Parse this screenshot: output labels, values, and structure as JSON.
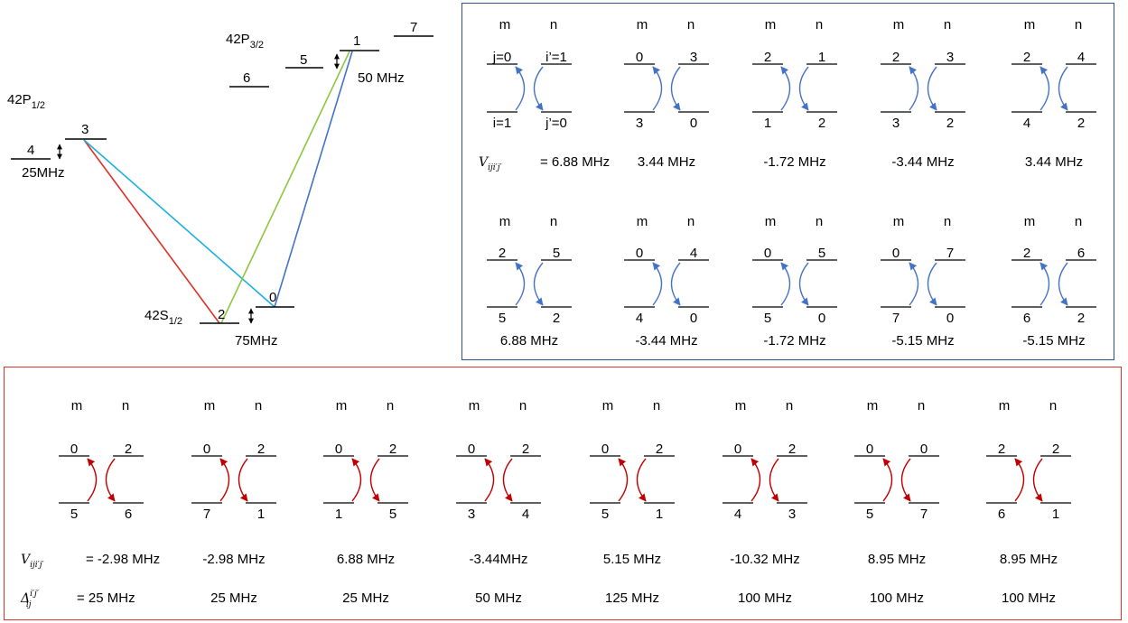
{
  "level_diagram": {
    "manifolds": [
      {
        "name": "42P",
        "sub": "3/2"
      },
      {
        "name": "42P",
        "sub": "1/2"
      },
      {
        "name": "42S",
        "sub": "1/2"
      }
    ],
    "levels": {
      "L0": "0",
      "L1": "1",
      "L2": "2",
      "L3": "3",
      "L4": "4",
      "L5": "5",
      "L6": "6",
      "L7": "7"
    },
    "splittings": {
      "p32": "50 MHz",
      "p12": "25MHz",
      "s12": "75MHz"
    },
    "transition_colors": {
      "red": "#e0302a",
      "cyan": "#1bb0e0",
      "green": "#8cc63f",
      "blue": "#4472c4"
    }
  },
  "blue_panel": {
    "header_m": "m",
    "header_n": "n",
    "arrow_color": "#4472c4",
    "cells": [
      {
        "top_left": "j=0",
        "top_right": "i’=1",
        "bottom_left": "i=1",
        "bottom_right": "j’=0",
        "value": "= 6.88 MHz"
      },
      {
        "top_left": "0",
        "top_right": "3",
        "bottom_left": "3",
        "bottom_right": "0",
        "value": "3.44 MHz"
      },
      {
        "top_left": "2",
        "top_right": "1",
        "bottom_left": "1",
        "bottom_right": "2",
        "value": "-1.72 MHz"
      },
      {
        "top_left": "2",
        "top_right": "3",
        "bottom_left": "3",
        "bottom_right": "2",
        "value": "-3.44 MHz"
      },
      {
        "top_left": "2",
        "top_right": "4",
        "bottom_left": "4",
        "bottom_right": "2",
        "value": "3.44 MHz"
      },
      {
        "top_left": "2",
        "top_right": "5",
        "bottom_left": "5",
        "bottom_right": "2",
        "value": "6.88 MHz"
      },
      {
        "top_left": "0",
        "top_right": "4",
        "bottom_left": "4",
        "bottom_right": "0",
        "value": "-3.44 MHz"
      },
      {
        "top_left": "0",
        "top_right": "5",
        "bottom_left": "5",
        "bottom_right": "0",
        "value": "-1.72 MHz"
      },
      {
        "top_left": "0",
        "top_right": "7",
        "bottom_left": "7",
        "bottom_right": "0",
        "value": "-5.15 MHz"
      },
      {
        "top_left": "2",
        "top_right": "6",
        "bottom_left": "6",
        "bottom_right": "2",
        "value": "-5.15 MHz"
      }
    ]
  },
  "red_panel": {
    "header_m": "m",
    "header_n": "n",
    "arrow_color": "#c00000",
    "cells": [
      {
        "top_left": "0",
        "top_right": "2",
        "bottom_left": "5",
        "bottom_right": "6",
        "v": "= -2.98 MHz",
        "delta": "= 25 MHz"
      },
      {
        "top_left": "0",
        "top_right": "2",
        "bottom_left": "7",
        "bottom_right": "1",
        "v": "-2.98 MHz",
        "delta": "25 MHz"
      },
      {
        "top_left": "0",
        "top_right": "2",
        "bottom_left": "1",
        "bottom_right": "5",
        "v": "6.88 MHz",
        "delta": "25 MHz"
      },
      {
        "top_left": "0",
        "top_right": "2",
        "bottom_left": "3",
        "bottom_right": "4",
        "v": "-3.44MHz",
        "delta": "50 MHz"
      },
      {
        "top_left": "0",
        "top_right": "2",
        "bottom_left": "5",
        "bottom_right": "1",
        "v": "5.15 MHz",
        "delta": "125 MHz"
      },
      {
        "top_left": "0",
        "top_right": "2",
        "bottom_left": "4",
        "bottom_right": "3",
        "v": "-10.32 MHz",
        "delta": "100 MHz"
      },
      {
        "top_left": "0",
        "top_right": "0",
        "bottom_left": "5",
        "bottom_right": "7",
        "v": "8.95 MHz",
        "delta": "100 MHz"
      },
      {
        "top_left": "2",
        "top_right": "2",
        "bottom_left": "6",
        "bottom_right": "1",
        "v": "8.95 MHz",
        "delta": "100 MHz"
      }
    ]
  }
}
